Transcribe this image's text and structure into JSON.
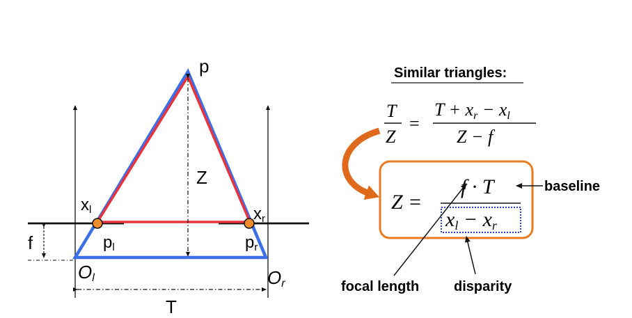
{
  "left_diagram": {
    "point_p": "p",
    "depth_Z": "Z",
    "focal_f": "f",
    "baseline_T": "T",
    "image_left": {
      "main": "x",
      "sub": "l"
    },
    "image_right": {
      "main": "x",
      "sub": "r"
    },
    "point_left": {
      "main": "p",
      "sub": "l"
    },
    "point_right": {
      "main": "p",
      "sub": "r"
    },
    "center_left": {
      "main": "O",
      "sub": "l"
    },
    "center_right": {
      "main": "O",
      "sub": "r"
    },
    "colors": {
      "outer_triangle": "#3a6fe8",
      "inner_triangle": "#e8333c",
      "image_point": "#f08c2b",
      "lines": "#111111"
    }
  },
  "right_panel": {
    "heading": "Similar triangles:",
    "equation1": {
      "lhs_num": "T",
      "lhs_den": "Z",
      "equals": "=",
      "rhs_num": "T + x",
      "rhs_num_sub1": "r",
      "rhs_num_minus": " − x",
      "rhs_num_sub2": "l",
      "rhs_den": "Z − f"
    },
    "equation2": {
      "lhs": "Z =",
      "num": "f · T",
      "den_a": "x",
      "den_a_sub": "l",
      "den_minus": " − x",
      "den_b_sub": "r"
    },
    "labels": {
      "baseline": "baseline",
      "focal_length": "focal length",
      "disparity": "disparity"
    },
    "colors": {
      "box_border": "#e87b22",
      "curved_arrow": "#e06a1c",
      "disparity_box": "#2a3fd6"
    }
  }
}
